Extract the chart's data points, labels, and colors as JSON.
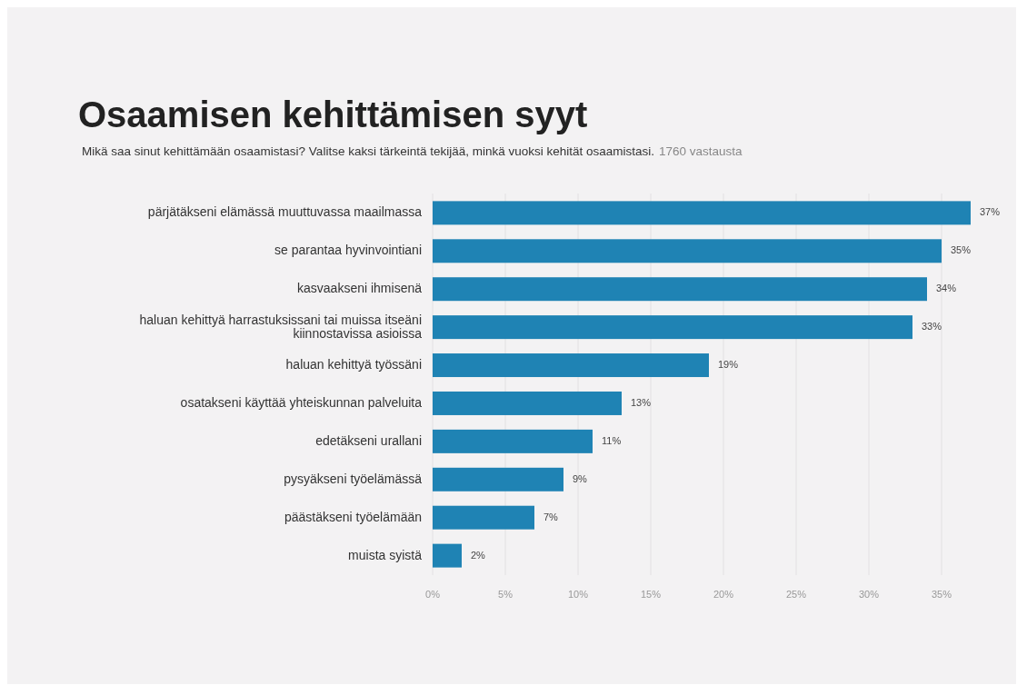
{
  "chart_data": {
    "type": "bar",
    "orientation": "horizontal",
    "title": "Osaamisen kehittämisen syyt",
    "subtitle": "Mikä saa sinut kehittämään osaamistasi? Valitse kaksi tärkeintä tekijää, minkä vuoksi kehität osaamistasi.",
    "annotations": [
      "1760 vastausta"
    ],
    "categories": [
      "pärjätäkseni elämässä muuttuvassa maailmassa",
      "se parantaa hyvinvointiani",
      "kasvaakseni ihmisenä",
      "haluan kehittyä harrastuksissani tai muissa itseäni kiinnostavissa asioissa",
      "haluan kehittyä työssäni",
      "osatakseni käyttää yhteiskunnan palveluita",
      "edetäkseni urallani",
      "pysyäkseni työelämässä",
      "päästäkseni työelämään",
      "muista syistä"
    ],
    "values": [
      37,
      35,
      34,
      33,
      19,
      13,
      11,
      9,
      7,
      2
    ],
    "value_labels": [
      "37%",
      "35%",
      "34%",
      "33%",
      "19%",
      "13%",
      "11%",
      "9%",
      "7%",
      "2%"
    ],
    "color": "#1f83b4",
    "xlim": [
      0,
      37
    ],
    "xticks": [
      {
        "value": 0,
        "label": "0%"
      },
      {
        "value": 5,
        "label": "5%"
      },
      {
        "value": 10,
        "label": "10%"
      },
      {
        "value": 15,
        "label": "15%"
      },
      {
        "value": 20,
        "label": "20%"
      },
      {
        "value": 25,
        "label": "25%"
      },
      {
        "value": 30,
        "label": "30%"
      },
      {
        "value": 35,
        "label": "35%"
      }
    ],
    "grid": "x"
  }
}
